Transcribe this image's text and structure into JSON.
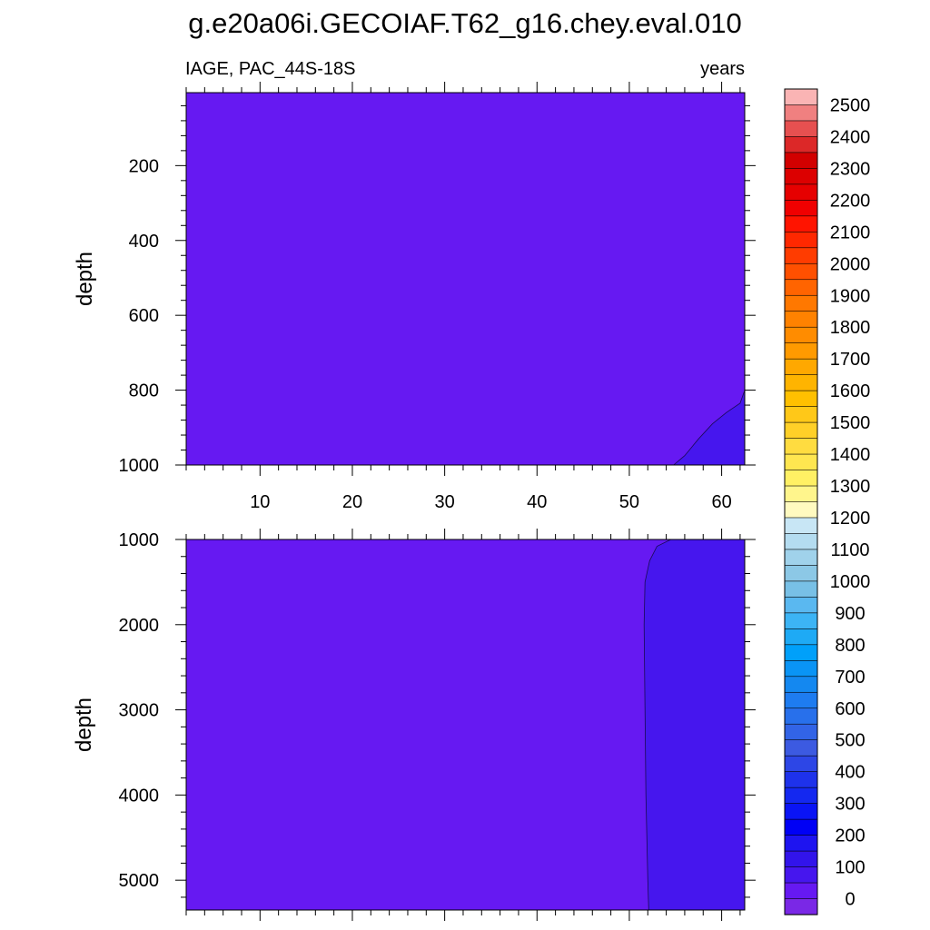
{
  "chart_data": {
    "type": "heatmap",
    "title": "g.e20a06i.GECOIAF.T62_g16.chey.eval.010",
    "variable_label": "IAGE, PAC_44S-18S",
    "units_label": "years",
    "x_axis": {
      "range": [
        2,
        62.5
      ],
      "ticks": [
        10,
        20,
        30,
        40,
        50,
        60
      ],
      "tick_labels": [
        "10",
        "20",
        "30",
        "40",
        "50",
        "60"
      ]
    },
    "panels": [
      {
        "name": "upper",
        "ylabel": "depth",
        "ylim": [
          5,
          1000
        ],
        "ticks": [
          200,
          400,
          600,
          800,
          1000
        ],
        "tick_labels": [
          "200",
          "400",
          "600",
          "800",
          "1000"
        ],
        "background_level": "0-50",
        "contour_regions": [
          {
            "level": "50-100",
            "boundary": [
              [
                54.8,
                1000
              ],
              [
                56,
                975
              ],
              [
                57.5,
                930
              ],
              [
                59,
                890
              ],
              [
                60.5,
                860
              ],
              [
                62,
                835
              ],
              [
                62.5,
                800
              ]
            ]
          }
        ]
      },
      {
        "name": "lower",
        "ylabel": "depth",
        "ylim": [
          1000,
          5350
        ],
        "ticks": [
          1000,
          2000,
          3000,
          4000,
          5000
        ],
        "tick_labels": [
          "1000",
          "2000",
          "3000",
          "4000",
          "5000"
        ],
        "background_level": "0-50",
        "contour_regions": [
          {
            "level": "50-100",
            "boundary": [
              [
                54.5,
                1000
              ],
              [
                53,
                1080
              ],
              [
                52.2,
                1250
              ],
              [
                51.7,
                1500
              ],
              [
                51.6,
                2000
              ],
              [
                51.7,
                3000
              ],
              [
                51.8,
                4000
              ],
              [
                52,
                5000
              ],
              [
                52.1,
                5350
              ]
            ]
          }
        ]
      }
    ],
    "colorbar": {
      "labels": [
        "2500",
        "2400",
        "2300",
        "2200",
        "2100",
        "2000",
        "1900",
        "1800",
        "1700",
        "1600",
        "1500",
        "1400",
        "1300",
        "1200",
        "1100",
        "1000",
        "900",
        "800",
        "700",
        "600",
        "500",
        "400",
        "300",
        "200",
        "100",
        "0"
      ],
      "colors": [
        "#fab4b4",
        "#f08080",
        "#e65050",
        "#dc2828",
        "#d20000",
        "#dc0000",
        "#e60000",
        "#f00000",
        "#ff1400",
        "#ff2800",
        "#ff3c00",
        "#ff5000",
        "#ff6400",
        "#ff7800",
        "#ff8200",
        "#ff8c00",
        "#ff9a00",
        "#ffa800",
        "#ffb400",
        "#ffc000",
        "#ffc818",
        "#ffd028",
        "#ffdc40",
        "#ffe650",
        "#fff064",
        "#fff58c",
        "#fffac0",
        "#c8e6f5",
        "#b4dcf0",
        "#a0d2eb",
        "#8cc8e6",
        "#78c0e6",
        "#5ab8f0",
        "#3cb4f5",
        "#1eaaf5",
        "#00a0fa",
        "#0a94f5",
        "#1488f0",
        "#1e7cf0",
        "#2870eb",
        "#3264e6",
        "#3c5ae1",
        "#2d46e6",
        "#1e32eb",
        "#1428f0",
        "#0a14f5",
        "#0000f5",
        "#1e14f0",
        "#3214eb",
        "#4616ee",
        "#6619f2",
        "#7a28e6"
      ],
      "level_colors": {
        "0-50": "#6619f2",
        "50-100": "#4616ee"
      }
    }
  }
}
